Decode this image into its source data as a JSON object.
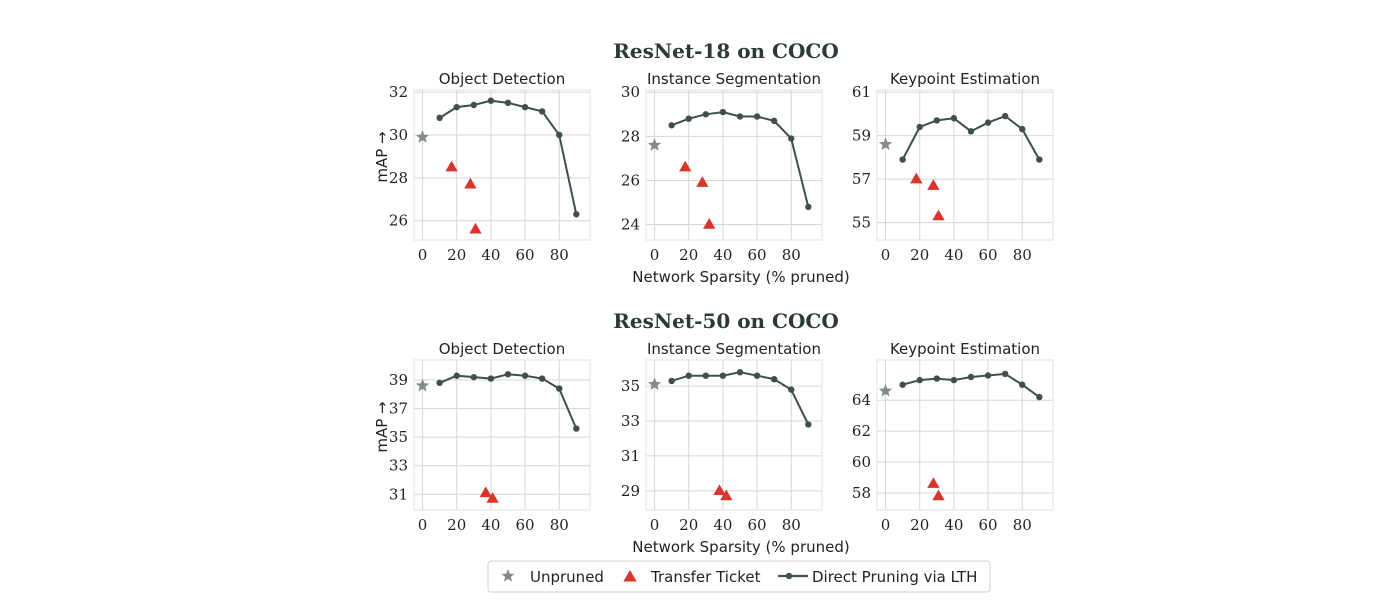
{
  "colors": {
    "line": "#3e5048",
    "unpruned": "#7f8c89",
    "transfer": "#d8352b",
    "grid": "#d6d6d6",
    "text": "#222222"
  },
  "xlabel": "Network Sparsity (% pruned)",
  "legend": {
    "placement": "bottom-center",
    "unpruned_label": "Unpruned",
    "transfer_label": "Transfer Ticket",
    "direct_label": "Direct Pruning via LTH"
  },
  "rows": [
    {
      "title": "ResNet-18 on COCO",
      "ylabel": "mAP →"
    },
    {
      "title": "ResNet-50 on COCO",
      "ylabel": "mAP →"
    }
  ],
  "chart_data": [
    {
      "type": "line",
      "row": 0,
      "col": 0,
      "title": "Object Detection",
      "xlim": [
        -5,
        98
      ],
      "ylim": [
        25.1,
        32.1
      ],
      "xticks": [
        0,
        20,
        40,
        60,
        80
      ],
      "yticks": [
        26,
        28,
        30,
        32
      ],
      "grid": true,
      "unpruned": {
        "x": 0,
        "y": 29.9
      },
      "transfer": [
        {
          "x": 17,
          "y": 28.5
        },
        {
          "x": 28,
          "y": 27.7
        },
        {
          "x": 31,
          "y": 25.6
        }
      ],
      "direct": {
        "x": [
          10,
          20,
          30,
          40,
          50,
          60,
          70,
          80,
          90
        ],
        "y": [
          30.8,
          31.3,
          31.4,
          31.6,
          31.5,
          31.3,
          31.1,
          30.0,
          26.3
        ]
      }
    },
    {
      "type": "line",
      "row": 0,
      "col": 1,
      "title": "Instance Segmentation",
      "xlim": [
        -5,
        98
      ],
      "ylim": [
        23.3,
        30.1
      ],
      "xticks": [
        0,
        20,
        40,
        60,
        80
      ],
      "yticks": [
        24,
        26,
        28,
        30
      ],
      "grid": true,
      "unpruned": {
        "x": 0,
        "y": 27.6
      },
      "transfer": [
        {
          "x": 18,
          "y": 26.6
        },
        {
          "x": 28,
          "y": 25.9
        },
        {
          "x": 32,
          "y": 24.0
        }
      ],
      "direct": {
        "x": [
          10,
          20,
          30,
          40,
          50,
          60,
          70,
          80,
          90
        ],
        "y": [
          28.5,
          28.8,
          29.0,
          29.1,
          28.9,
          28.9,
          28.7,
          27.9,
          24.8
        ]
      }
    },
    {
      "type": "line",
      "row": 0,
      "col": 2,
      "title": "Keypoint Estimation",
      "xlim": [
        -5,
        98
      ],
      "ylim": [
        54.2,
        61.1
      ],
      "xticks": [
        0,
        20,
        40,
        60,
        80
      ],
      "yticks": [
        55,
        57,
        59,
        61
      ],
      "grid": true,
      "unpruned": {
        "x": 0,
        "y": 58.6
      },
      "transfer": [
        {
          "x": 18,
          "y": 57.0
        },
        {
          "x": 28,
          "y": 56.7
        },
        {
          "x": 31,
          "y": 55.3
        }
      ],
      "direct": {
        "x": [
          10,
          20,
          30,
          40,
          50,
          60,
          70,
          80,
          90
        ],
        "y": [
          57.9,
          59.4,
          59.7,
          59.8,
          59.2,
          59.6,
          59.9,
          59.3,
          57.9
        ]
      }
    },
    {
      "type": "line",
      "row": 1,
      "col": 0,
      "title": "Object Detection",
      "xlim": [
        -5,
        98
      ],
      "ylim": [
        29.9,
        40.4
      ],
      "xticks": [
        0,
        20,
        40,
        60,
        80
      ],
      "yticks": [
        31,
        33,
        35,
        37,
        39
      ],
      "grid": true,
      "unpruned": {
        "x": 0,
        "y": 38.6
      },
      "transfer": [
        {
          "x": 37,
          "y": 31.1
        },
        {
          "x": 41,
          "y": 30.7
        }
      ],
      "direct": {
        "x": [
          10,
          20,
          30,
          40,
          50,
          60,
          70,
          80,
          90
        ],
        "y": [
          38.8,
          39.3,
          39.2,
          39.1,
          39.4,
          39.3,
          39.1,
          38.4,
          35.6
        ]
      }
    },
    {
      "type": "line",
      "row": 1,
      "col": 1,
      "title": "Instance Segmentation",
      "xlim": [
        -5,
        98
      ],
      "ylim": [
        27.9,
        36.5
      ],
      "xticks": [
        0,
        20,
        40,
        60,
        80
      ],
      "yticks": [
        29,
        31,
        33,
        35
      ],
      "grid": true,
      "unpruned": {
        "x": 0,
        "y": 35.1
      },
      "transfer": [
        {
          "x": 38,
          "y": 29.0
        },
        {
          "x": 42,
          "y": 28.7
        }
      ],
      "direct": {
        "x": [
          10,
          20,
          30,
          40,
          50,
          60,
          70,
          80,
          90
        ],
        "y": [
          35.3,
          35.6,
          35.6,
          35.6,
          35.8,
          35.6,
          35.4,
          34.8,
          32.8
        ]
      }
    },
    {
      "type": "line",
      "row": 1,
      "col": 2,
      "title": "Keypoint Estimation",
      "xlim": [
        -5,
        98
      ],
      "ylim": [
        56.9,
        66.6
      ],
      "xticks": [
        0,
        20,
        40,
        60,
        80
      ],
      "yticks": [
        58,
        60,
        62,
        64
      ],
      "grid": true,
      "unpruned": {
        "x": 0,
        "y": 64.6
      },
      "transfer": [
        {
          "x": 28,
          "y": 58.6
        },
        {
          "x": 31,
          "y": 57.8
        }
      ],
      "direct": {
        "x": [
          10,
          20,
          30,
          40,
          50,
          60,
          70,
          80,
          90
        ],
        "y": [
          65.0,
          65.3,
          65.4,
          65.3,
          65.5,
          65.6,
          65.7,
          65.0,
          64.2
        ]
      }
    }
  ]
}
